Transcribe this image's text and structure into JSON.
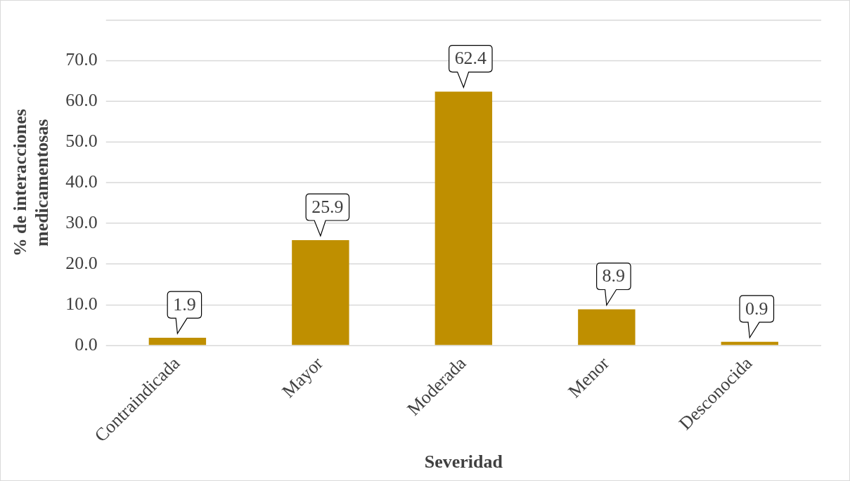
{
  "chart_data": {
    "type": "bar",
    "xlabel": "Severidad",
    "ylabel": "% de interacciones medicamentosas",
    "categories": [
      "Contraindicada",
      "Mayor",
      "Moderada",
      "Menor",
      "Desconocida"
    ],
    "values": [
      1.9,
      25.9,
      62.4,
      8.9,
      0.9
    ],
    "color": "#bf8f00",
    "ylim": [
      0,
      80
    ],
    "yticks": [
      {
        "value": 0,
        "label": "0.0"
      },
      {
        "value": 10,
        "label": "10.0"
      },
      {
        "value": 20,
        "label": "20.0"
      },
      {
        "value": 30,
        "label": "30.0"
      },
      {
        "value": 40,
        "label": "40.0"
      },
      {
        "value": 50,
        "label": "50.0"
      },
      {
        "value": 60,
        "label": "60.0"
      },
      {
        "value": 70,
        "label": "70.0"
      },
      {
        "value": 80,
        "label": null
      }
    ],
    "grid": "y",
    "data_labels": true,
    "legend": false
  }
}
